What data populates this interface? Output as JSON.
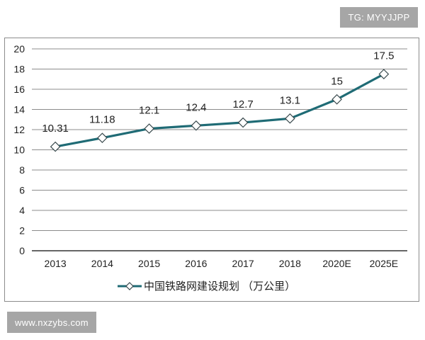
{
  "watermarks": {
    "top_right": "TG: MYYJJPP",
    "bottom_left": "www.nxzybs.com"
  },
  "colors": {
    "line": "#1f6b75",
    "grid": "#8c8c8c",
    "axis": "#333333",
    "marker_fill": "#ffffff",
    "badge_bg": "#a6a6a6"
  },
  "chart_data": {
    "type": "line",
    "title": "",
    "xlabel": "",
    "ylabel": "",
    "categories": [
      "2013",
      "2014",
      "2015",
      "2016",
      "2017",
      "2018",
      "2020E",
      "2025E"
    ],
    "series": [
      {
        "name": "中国铁路网建设规划 （万公里）",
        "values": [
          10.31,
          11.18,
          12.1,
          12.4,
          12.7,
          13.1,
          15,
          17.5
        ],
        "labels": [
          "10.31",
          "11.18",
          "12.1",
          "12.4",
          "12.7",
          "13.1",
          "15",
          "17.5"
        ],
        "marker": "diamond-open"
      }
    ],
    "ylim": [
      0,
      20
    ],
    "yticks": [
      "0",
      "2",
      "4",
      "6",
      "8",
      "10",
      "12",
      "14",
      "16",
      "18",
      "20"
    ],
    "grid": true,
    "legend_position": "bottom"
  },
  "legend": {
    "label": "中国铁路网建设规划 （万公里）"
  }
}
